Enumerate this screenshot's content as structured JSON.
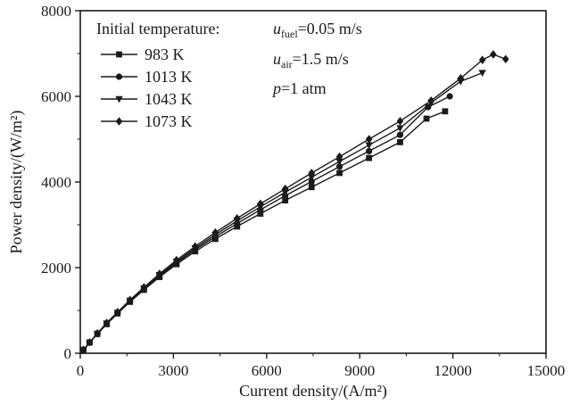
{
  "figure": {
    "background": "#ffffff",
    "ink_color": "#1a1a1a"
  },
  "chart_data": {
    "type": "line",
    "title": "",
    "xlabel": "Current density/(A/m²)",
    "ylabel": "Power density/(W/m²)",
    "xlim": [
      0,
      15000
    ],
    "ylim": [
      0,
      8000
    ],
    "xticks": [
      0,
      3000,
      6000,
      9000,
      12000,
      15000
    ],
    "yticks": [
      0,
      2000,
      4000,
      6000,
      8000
    ],
    "x_minor_step": 1500,
    "y_minor_step": 1000,
    "grid": false,
    "legend": {
      "position": "top-left",
      "title": "Initial temperature:",
      "entries": [
        "983 K",
        "1013 K",
        "1043 K",
        "1073 K"
      ]
    },
    "annotations": [
      {
        "var": "u",
        "sub": "fuel",
        "rest": "=0.05 m/s"
      },
      {
        "var": "u",
        "sub": "air",
        "rest": "=1.5 m/s"
      },
      {
        "var": "p",
        "sub": "",
        "rest": "=1 atm"
      }
    ],
    "series": [
      {
        "name": "983 K",
        "marker": "square",
        "color": "#1a1a1a",
        "x": [
          100,
          300,
          550,
          850,
          1200,
          1600,
          2050,
          2550,
          3100,
          3700,
          4350,
          5050,
          5800,
          6600,
          7450,
          8350,
          9300,
          10300,
          11150,
          11750
        ],
        "y": [
          80,
          250,
          450,
          680,
          930,
          1200,
          1480,
          1780,
          2080,
          2380,
          2670,
          2960,
          3260,
          3570,
          3880,
          4210,
          4560,
          4930,
          5480,
          5650
        ]
      },
      {
        "name": "1013 K",
        "marker": "circle",
        "color": "#1a1a1a",
        "x": [
          100,
          300,
          550,
          850,
          1200,
          1600,
          2050,
          2550,
          3100,
          3700,
          4350,
          5050,
          5800,
          6600,
          7450,
          8350,
          9300,
          10300,
          11200,
          11900
        ],
        "y": [
          80,
          250,
          455,
          690,
          940,
          1215,
          1500,
          1805,
          2110,
          2420,
          2720,
          3030,
          3350,
          3680,
          4010,
          4360,
          4720,
          5100,
          5750,
          6000
        ]
      },
      {
        "name": "1043 K",
        "marker": "triangle-down",
        "color": "#1a1a1a",
        "x": [
          100,
          300,
          550,
          850,
          1200,
          1600,
          2050,
          2550,
          3100,
          3700,
          4350,
          5050,
          5800,
          6600,
          7450,
          8350,
          9300,
          10300,
          11300,
          12250,
          12950
        ],
        "y": [
          80,
          252,
          460,
          700,
          950,
          1230,
          1520,
          1830,
          2140,
          2455,
          2770,
          3090,
          3420,
          3760,
          4110,
          4480,
          4860,
          5260,
          5850,
          6350,
          6550
        ]
      },
      {
        "name": "1073 K",
        "marker": "diamond",
        "color": "#1a1a1a",
        "x": [
          100,
          300,
          550,
          850,
          1200,
          1600,
          2050,
          2550,
          3100,
          3700,
          4350,
          5050,
          5800,
          6600,
          7450,
          8350,
          9300,
          10300,
          11300,
          12250,
          12950,
          13300,
          13700
        ],
        "y": [
          80,
          255,
          465,
          710,
          960,
          1245,
          1540,
          1855,
          2175,
          2495,
          2820,
          3150,
          3490,
          3840,
          4210,
          4590,
          5000,
          5420,
          5900,
          6420,
          6850,
          6980,
          6870
        ]
      }
    ]
  }
}
